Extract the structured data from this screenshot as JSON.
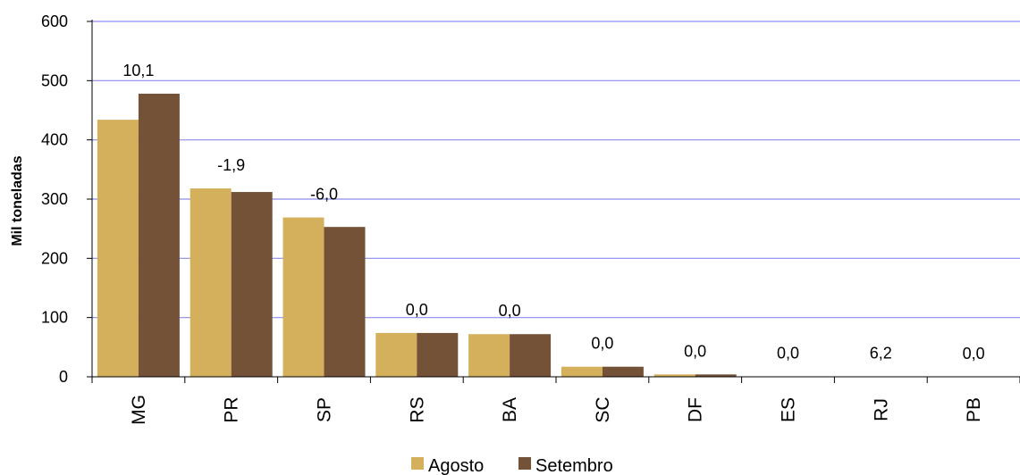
{
  "chart_data": {
    "type": "bar",
    "title": "",
    "xlabel": "",
    "ylabel": "Mil toneladas",
    "ylim": [
      0,
      600
    ],
    "yticks": [
      0,
      100,
      200,
      300,
      400,
      500,
      600
    ],
    "grid": true,
    "legend_position": "bottom",
    "categories": [
      "MG",
      "PR",
      "SP",
      "RS",
      "BA",
      "SC",
      "DF",
      "ES",
      "RJ",
      "PB"
    ],
    "series": [
      {
        "name": "Agosto",
        "color": "#D4B05C",
        "values": [
          434,
          318,
          269,
          74,
          72,
          17,
          4,
          0.6,
          0.4,
          0.2
        ]
      },
      {
        "name": "Setembro",
        "color": "#735238",
        "values": [
          478,
          312,
          253,
          74,
          72,
          17,
          4,
          0.6,
          0.4,
          0.2
        ]
      }
    ],
    "data_labels": [
      "10,1",
      "-1,9",
      "-6,0",
      "0,0",
      "0,0",
      "0,0",
      "0,0",
      "0,0",
      "6,2",
      "0,0"
    ]
  }
}
